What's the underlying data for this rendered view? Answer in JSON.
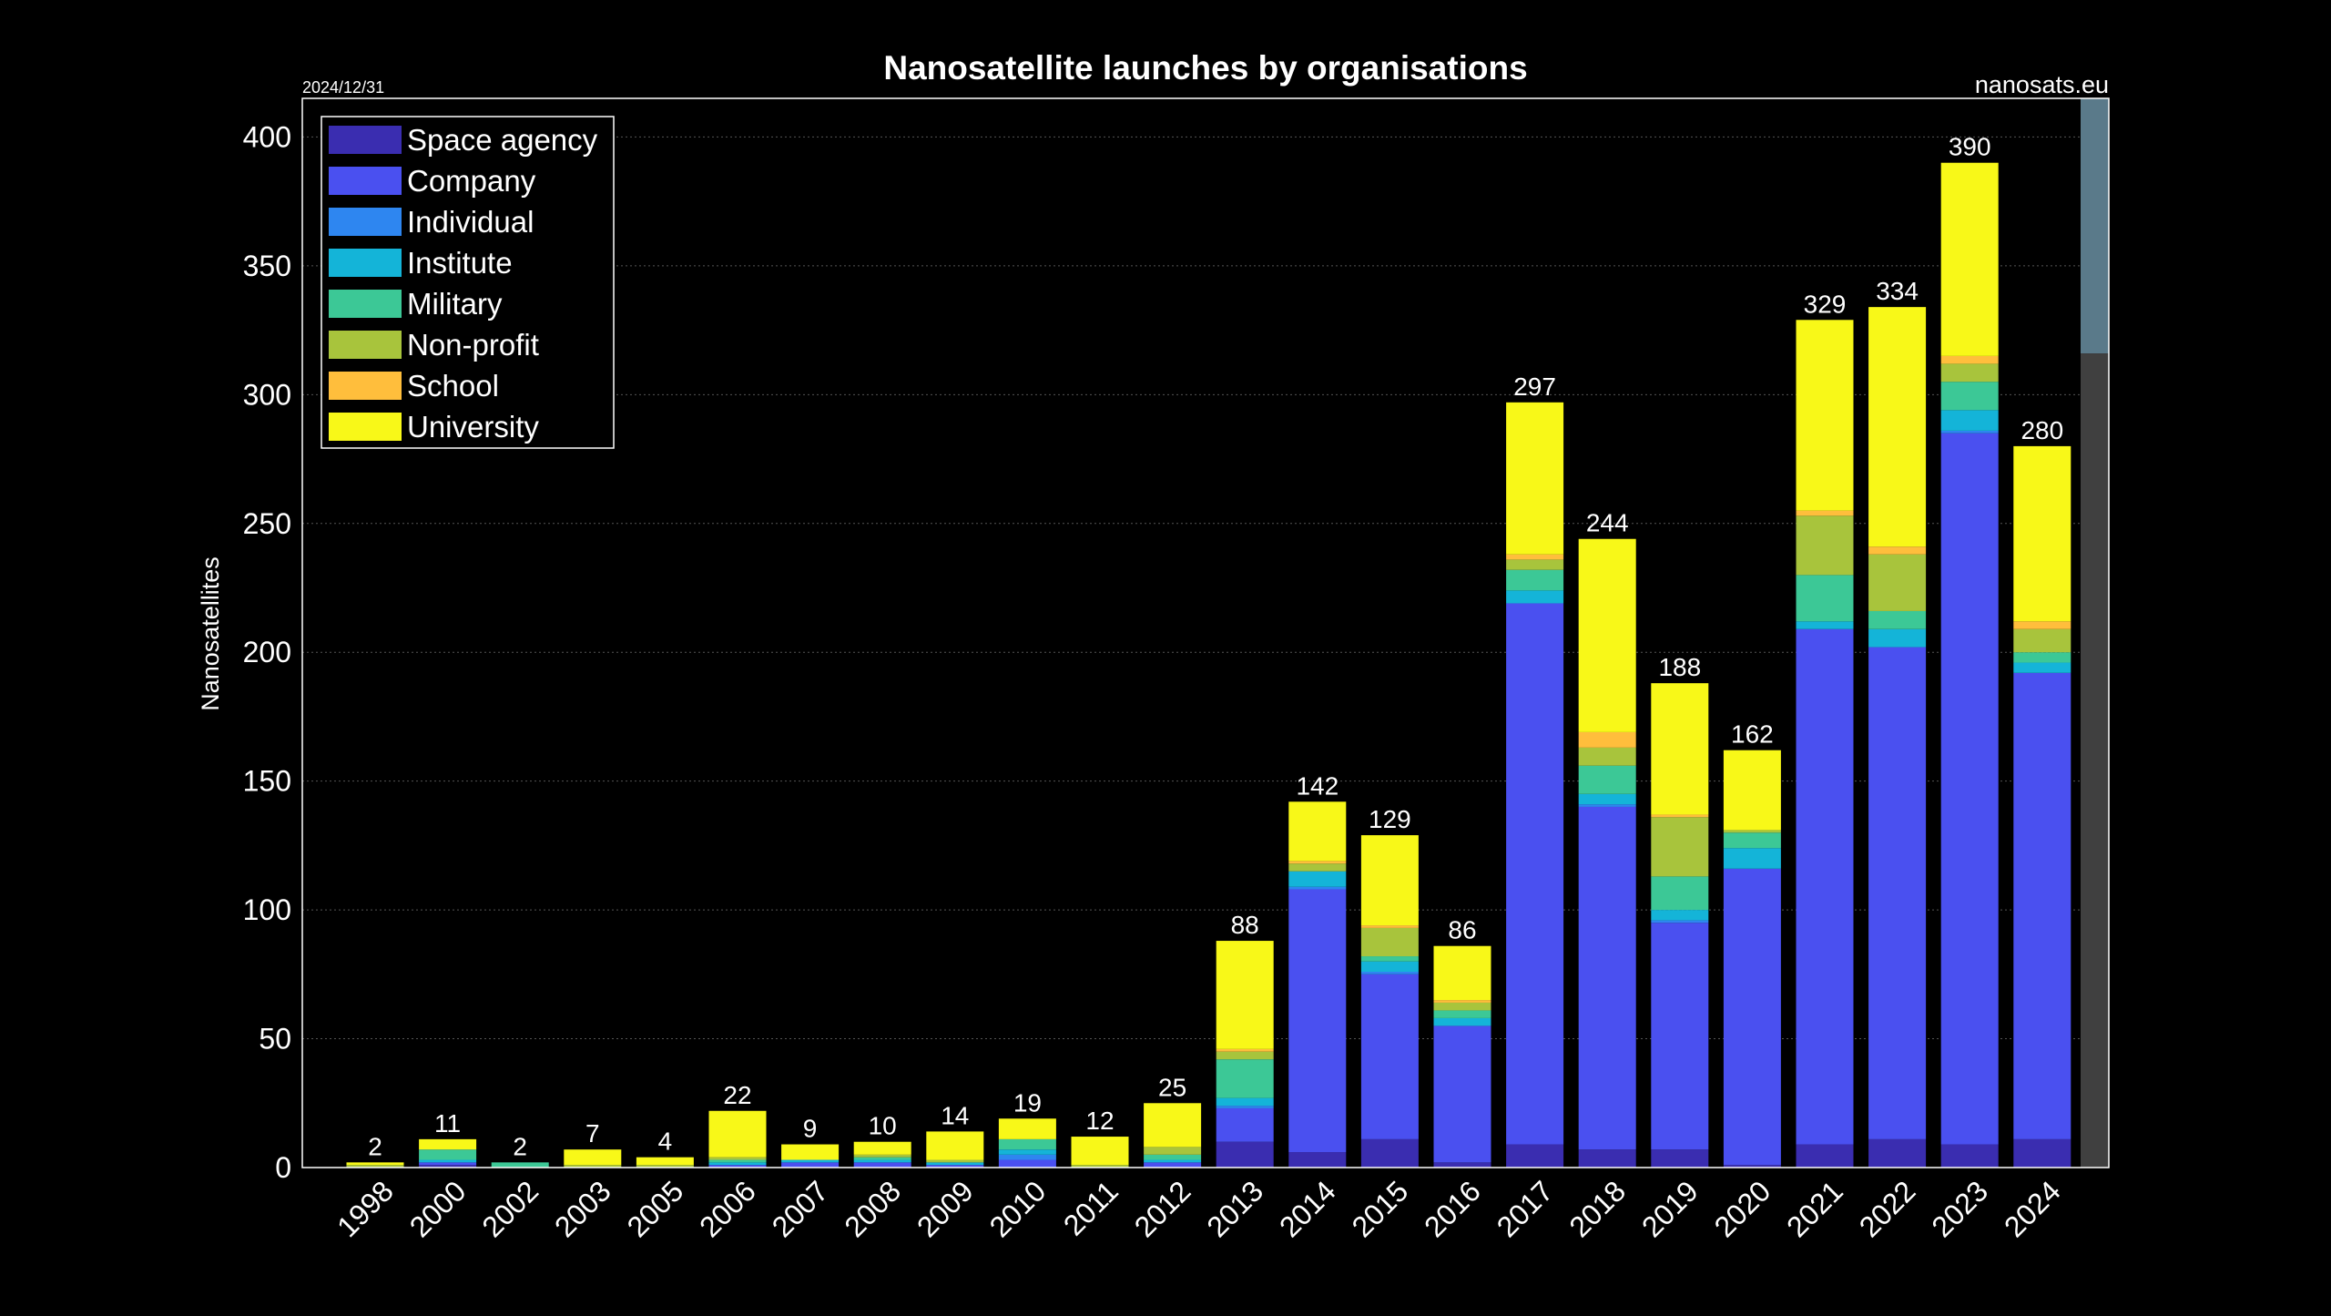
{
  "chart_data": {
    "type": "bar",
    "stacked": true,
    "title": "Nanosatellite launches by organisations",
    "date_label": "2024/12/31",
    "source_label": "nanosats.eu",
    "xlabel": "",
    "ylabel": "Nanosatellites",
    "ylim": [
      0,
      415
    ],
    "yticks": [
      0,
      50,
      100,
      150,
      200,
      250,
      300,
      350,
      400
    ],
    "grid": "horizontal dotted",
    "legend_position": "top-left",
    "background": "#000000",
    "categories": [
      "1998",
      "2000",
      "2002",
      "2003",
      "2005",
      "2006",
      "2007",
      "2008",
      "2009",
      "2010",
      "2011",
      "2012",
      "2013",
      "2014",
      "2015",
      "2016",
      "2017",
      "2018",
      "2019",
      "2020",
      "2021",
      "2022",
      "2023",
      "2024"
    ],
    "totals": [
      2,
      11,
      2,
      7,
      4,
      22,
      9,
      10,
      14,
      19,
      12,
      25,
      88,
      142,
      129,
      86,
      297,
      244,
      188,
      162,
      329,
      334,
      390,
      280
    ],
    "series": [
      {
        "name": "Space agency",
        "color": "#3a2db0",
        "values": [
          0,
          1,
          0,
          0,
          0,
          0,
          0,
          0,
          0,
          0,
          0,
          0,
          10,
          6,
          11,
          2,
          9,
          7,
          7,
          1,
          9,
          11,
          9,
          11
        ]
      },
      {
        "name": "Company",
        "color": "#4a50f0",
        "values": [
          0,
          1,
          0,
          0,
          0,
          1,
          2,
          2,
          1,
          3,
          0,
          2,
          13,
          102,
          64,
          53,
          210,
          133,
          88,
          115,
          200,
          191,
          276,
          181
        ]
      },
      {
        "name": "Individual",
        "color": "#2e86f0",
        "values": [
          0,
          0,
          0,
          0,
          0,
          0,
          0,
          0,
          0,
          2,
          0,
          0,
          1,
          1,
          1,
          0,
          0,
          1,
          1,
          0,
          0,
          0,
          1,
          0
        ]
      },
      {
        "name": "Institute",
        "color": "#14b4d8",
        "values": [
          0,
          1,
          0,
          0,
          0,
          1,
          1,
          1,
          1,
          2,
          0,
          1,
          3,
          6,
          4,
          3,
          5,
          4,
          4,
          8,
          3,
          7,
          8,
          4
        ]
      },
      {
        "name": "Military",
        "color": "#3cc896",
        "values": [
          0,
          4,
          2,
          0,
          0,
          1,
          0,
          1,
          0,
          4,
          0,
          2,
          15,
          0,
          2,
          3,
          8,
          11,
          13,
          6,
          18,
          7,
          11,
          4
        ]
      },
      {
        "name": "Non-profit",
        "color": "#a8c43c",
        "values": [
          1,
          0,
          0,
          1,
          1,
          1,
          0,
          1,
          1,
          0,
          1,
          3,
          3,
          3,
          11,
          3,
          4,
          7,
          23,
          1,
          23,
          22,
          7,
          9
        ]
      },
      {
        "name": "School",
        "color": "#ffbe3c",
        "values": [
          0,
          0,
          0,
          0,
          0,
          0,
          0,
          0,
          0,
          0,
          0,
          0,
          1,
          1,
          1,
          1,
          2,
          6,
          1,
          0,
          2,
          3,
          3,
          3
        ]
      },
      {
        "name": "University",
        "color": "#f8f818",
        "values": [
          1,
          4,
          0,
          6,
          3,
          18,
          6,
          5,
          11,
          8,
          11,
          17,
          42,
          23,
          35,
          21,
          59,
          75,
          51,
          31,
          74,
          93,
          75,
          68
        ]
      }
    ],
    "partial_year_band_color": "#5a7a8a",
    "partial_year_band_lower_color": "#404040"
  }
}
